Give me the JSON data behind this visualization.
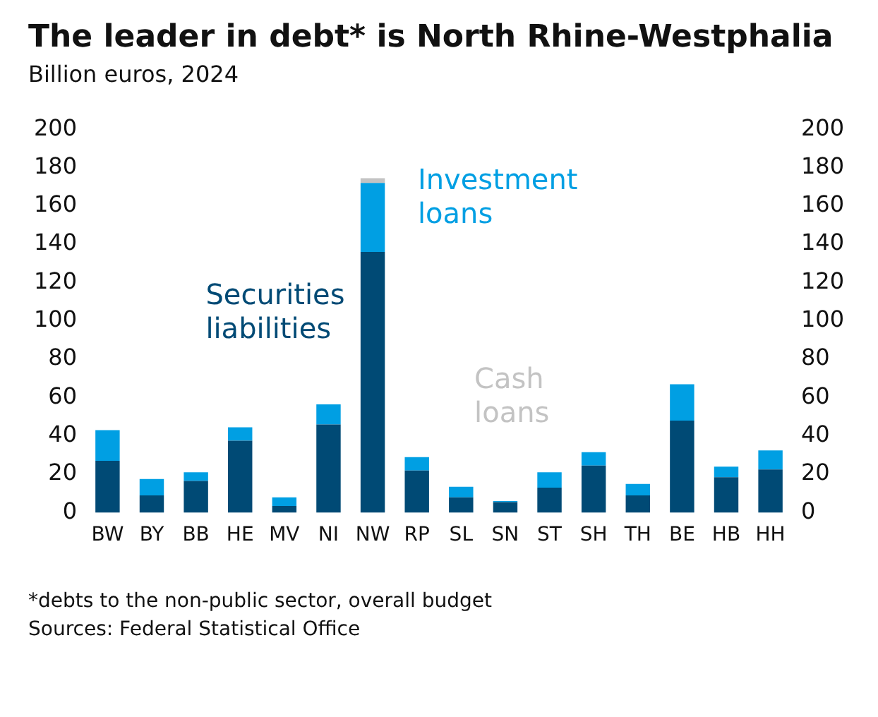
{
  "chart_data": {
    "type": "bar",
    "title": "The leader in debt* is North Rhine-Westphalia",
    "subtitle": "Billion euros, 2024",
    "categories": [
      "BW",
      "BY",
      "BB",
      "HE",
      "MV",
      "NI",
      "NW",
      "RP",
      "SL",
      "SN",
      "ST",
      "SH",
      "TH",
      "BE",
      "HB",
      "HH"
    ],
    "stacked": true,
    "series": [
      {
        "name": "Securities liabilities",
        "color": "#004a75",
        "values": [
          27,
          9,
          16.5,
          37.5,
          3.5,
          46,
          136,
          22,
          8,
          5.5,
          13,
          24.5,
          9,
          48,
          18.5,
          22.5
        ]
      },
      {
        "name": "Investment loans",
        "color": "#009fe3",
        "values": [
          16,
          8.5,
          4.5,
          7,
          4.5,
          10.5,
          36,
          7,
          5.5,
          0.5,
          8,
          7,
          6,
          19,
          5.5,
          10
        ]
      },
      {
        "name": "Cash loans",
        "color": "#c3c3c3",
        "values": [
          0,
          0,
          0,
          0,
          0,
          0,
          2.5,
          0,
          0,
          0,
          0,
          0,
          0,
          0,
          0,
          0
        ]
      }
    ],
    "ylim": [
      0,
      200
    ],
    "yticks": [
      0,
      20,
      40,
      60,
      80,
      100,
      120,
      140,
      160,
      180,
      200
    ],
    "y2lim": [
      0,
      200
    ],
    "y2ticks": [
      0,
      20,
      40,
      60,
      80,
      100,
      120,
      140,
      160,
      180,
      200
    ],
    "grid": false,
    "legend": false,
    "annotations": [
      "*debts to the non-public sector, overall budget",
      "Sources: Federal Statistical Office"
    ]
  }
}
